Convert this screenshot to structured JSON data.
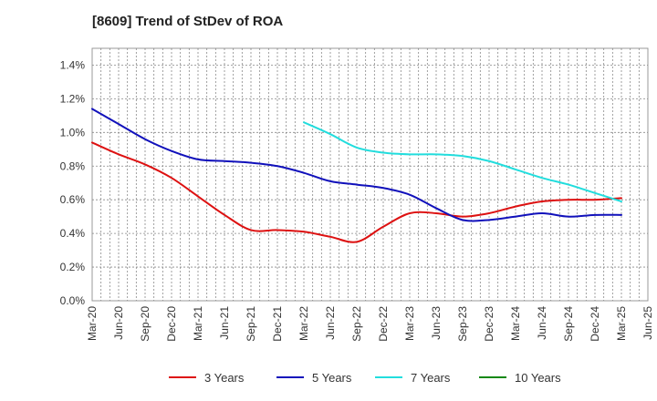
{
  "chart_data": {
    "type": "line",
    "title": "[8609]  Trend of StDev of ROA",
    "xlabel": "",
    "ylabel": "",
    "x": [
      "Mar-20",
      "Jun-20",
      "Sep-20",
      "Dec-20",
      "Mar-21",
      "Jun-21",
      "Sep-21",
      "Dec-21",
      "Mar-22",
      "Jun-22",
      "Sep-22",
      "Dec-22",
      "Mar-23",
      "Jun-23",
      "Sep-23",
      "Dec-23",
      "Mar-24",
      "Jun-24",
      "Sep-24",
      "Dec-24",
      "Mar-25",
      "Jun-25"
    ],
    "ylim": [
      0,
      1.5
    ],
    "yticks": [
      0,
      0.2,
      0.4,
      0.6,
      0.8,
      1.0,
      1.2,
      1.4
    ],
    "ytick_labels": [
      "0.0%",
      "0.2%",
      "0.4%",
      "0.6%",
      "0.8%",
      "1.0%",
      "1.2%",
      "1.4%"
    ],
    "grid": true,
    "legend_position": "bottom",
    "series": [
      {
        "name": "3 Years",
        "color": "#dd1111",
        "values": [
          0.94,
          0.87,
          0.81,
          0.73,
          0.62,
          0.51,
          0.42,
          0.42,
          0.41,
          0.38,
          0.35,
          0.44,
          0.52,
          0.52,
          0.5,
          0.52,
          0.56,
          0.59,
          0.6,
          0.6,
          0.61,
          null
        ]
      },
      {
        "name": "5 Years",
        "color": "#1111bb",
        "values": [
          1.14,
          1.05,
          0.96,
          0.89,
          0.84,
          0.83,
          0.82,
          0.8,
          0.76,
          0.71,
          0.69,
          0.67,
          0.63,
          0.55,
          0.48,
          0.48,
          0.5,
          0.52,
          0.5,
          0.51,
          0.51,
          null
        ]
      },
      {
        "name": "7 Years",
        "color": "#22dddd",
        "values": [
          null,
          null,
          null,
          null,
          null,
          null,
          null,
          null,
          1.06,
          0.99,
          0.91,
          0.88,
          0.87,
          0.87,
          0.86,
          0.83,
          0.78,
          0.73,
          0.69,
          0.64,
          0.59,
          null
        ]
      },
      {
        "name": "10 Years",
        "color": "#118811",
        "values": [
          null,
          null,
          null,
          null,
          null,
          null,
          null,
          null,
          null,
          null,
          null,
          null,
          null,
          null,
          null,
          null,
          null,
          null,
          null,
          null,
          null,
          null
        ]
      }
    ]
  }
}
